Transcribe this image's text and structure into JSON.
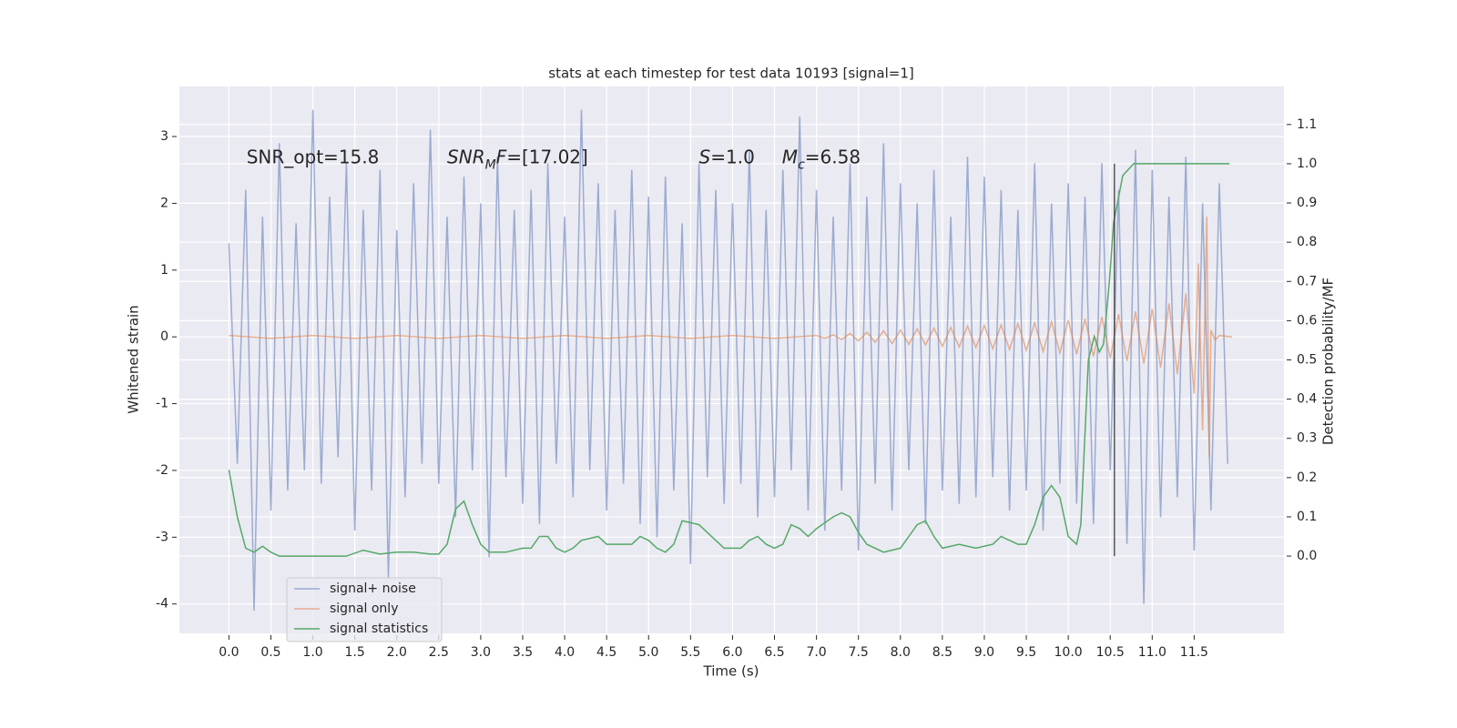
{
  "chart_data": {
    "type": "line",
    "title": "stats at each timestep for test data 10193 [signal=1]",
    "xlabel": "Time (s)",
    "ylabel": "Whitened strain",
    "y2label": "Detection probability/MF",
    "xlim": [
      -0.59,
      12.57
    ],
    "ylim": [
      -4.44,
      3.75
    ],
    "y2lim": [
      -0.197,
      1.197
    ],
    "xticks": [
      {
        "value": 0,
        "label": "0.0"
      },
      0.5,
      {
        "value": 1,
        "label": "1.0"
      },
      1.5,
      {
        "value": 2,
        "label": "2.0"
      },
      2.5,
      {
        "value": 3,
        "label": "3.0"
      },
      3.5,
      {
        "value": 4,
        "label": "4.0"
      },
      4.5,
      {
        "value": 5,
        "label": "5.0"
      },
      5.5,
      {
        "value": 6,
        "label": "6.0"
      },
      6.5,
      {
        "value": 7,
        "label": "7.0"
      },
      7.5,
      {
        "value": 8,
        "label": "8.0"
      },
      8.5,
      {
        "value": 9,
        "label": "9.0"
      },
      9.5,
      {
        "value": 10,
        "label": "10.0"
      },
      10.5,
      {
        "value": 11,
        "label": "11.0"
      },
      11.5
    ],
    "yticks": [
      -4,
      -3,
      -2,
      -1,
      0,
      1,
      2,
      3
    ],
    "y2ticks": [
      {
        "value": 0,
        "label": "0.0"
      },
      0.1,
      0.2,
      0.3,
      0.4,
      0.5,
      0.6,
      0.7,
      0.8,
      0.9,
      {
        "value": 1,
        "label": "1.0"
      },
      1.1
    ],
    "grid": true,
    "legend": "lower left",
    "vline": {
      "x": 10.55,
      "ymin": 0,
      "ymax": 1,
      "axis": "y2",
      "color": "#333333"
    },
    "annotations": [
      {
        "x": 0.21,
        "y": 2.68,
        "parts": [
          {
            "text": "SNR_opt=15.8"
          }
        ]
      },
      {
        "x": 2.6,
        "y": 2.68,
        "parts": [
          {
            "text": "SNR",
            "italic": true
          },
          {
            "text": "M",
            "italic": true,
            "sub": true
          },
          {
            "text": "F",
            "italic": true
          },
          {
            "text": "=[17.02]"
          }
        ]
      },
      {
        "x": 5.6,
        "y": 2.68,
        "parts": [
          {
            "text": "S",
            "italic": true
          },
          {
            "text": "=1.0"
          }
        ]
      },
      {
        "x": 6.59,
        "y": 2.68,
        "parts": [
          {
            "text": "M",
            "italic": true
          },
          {
            "text": "c",
            "italic": true,
            "sub": true
          },
          {
            "text": "=6.58"
          }
        ]
      }
    ],
    "series": [
      {
        "name": "signal+ noise",
        "color": "#8da0cb",
        "opacity": 0.85,
        "x": [
          0,
          0.1,
          0.2,
          0.3,
          0.4,
          0.5,
          0.6,
          0.7,
          0.8,
          0.9,
          1,
          1.1,
          1.2,
          1.3,
          1.4,
          1.5,
          1.6,
          1.7,
          1.8,
          1.9,
          2,
          2.1,
          2.2,
          2.3,
          2.4,
          2.5,
          2.6,
          2.7,
          2.8,
          2.9,
          3,
          3.1,
          3.2,
          3.3,
          3.4,
          3.5,
          3.6,
          3.7,
          3.8,
          3.9,
          4,
          4.1,
          4.2,
          4.3,
          4.4,
          4.5,
          4.6,
          4.7,
          4.8,
          4.9,
          5,
          5.1,
          5.2,
          5.3,
          5.4,
          5.5,
          5.6,
          5.7,
          5.8,
          5.9,
          6,
          6.1,
          6.2,
          6.3,
          6.4,
          6.5,
          6.6,
          6.7,
          6.8,
          6.9,
          7,
          7.1,
          7.2,
          7.3,
          7.4,
          7.5,
          7.6,
          7.7,
          7.8,
          7.9,
          8,
          8.1,
          8.2,
          8.3,
          8.4,
          8.5,
          8.6,
          8.7,
          8.8,
          8.9,
          9,
          9.1,
          9.2,
          9.3,
          9.4,
          9.5,
          9.6,
          9.7,
          9.8,
          9.9,
          10,
          10.1,
          10.2,
          10.3,
          10.4,
          10.5,
          10.6,
          10.7,
          10.8,
          10.9,
          11,
          11.1,
          11.2,
          11.3,
          11.4,
          11.5,
          11.6,
          11.7,
          11.8,
          11.9
        ],
        "values": [
          1.4,
          -1.9,
          2.2,
          -4.1,
          1.8,
          -2.6,
          2.9,
          -2.3,
          1.7,
          -2.0,
          3.4,
          -2.2,
          2.1,
          -1.8,
          2.6,
          -2.9,
          1.9,
          -2.3,
          2.5,
          -3.6,
          1.6,
          -2.4,
          2.3,
          -1.9,
          3.1,
          -2.2,
          1.8,
          -2.7,
          2.4,
          -2.0,
          2.0,
          -3.3,
          2.7,
          -2.1,
          1.9,
          -2.5,
          2.2,
          -2.8,
          2.6,
          -1.9,
          1.8,
          -2.4,
          3.4,
          -2.0,
          2.3,
          -2.6,
          1.9,
          -2.2,
          2.5,
          -2.8,
          2.1,
          -3.0,
          2.4,
          -2.3,
          1.7,
          -3.4,
          2.6,
          -2.1,
          2.2,
          -2.5,
          2.0,
          -2.2,
          2.8,
          -2.7,
          1.9,
          -2.4,
          2.5,
          -2.0,
          3.3,
          -2.6,
          2.2,
          -2.9,
          1.8,
          -2.3,
          2.6,
          -3.2,
          2.1,
          -2.2,
          2.9,
          -2.6,
          2.3,
          -2.0,
          2.0,
          -2.8,
          2.5,
          -2.3,
          1.8,
          -2.5,
          2.7,
          -2.4,
          2.4,
          -2.1,
          2.2,
          -2.6,
          1.9,
          -2.3,
          2.6,
          -2.9,
          2.0,
          -2.2,
          2.3,
          -2.5,
          2.1,
          -2.8,
          2.6,
          -2.0,
          2.2,
          -3.1,
          2.8,
          -4.0,
          2.5,
          -2.7,
          2.1,
          -2.4,
          2.7,
          -3.2,
          2.0,
          -2.6,
          2.3,
          -1.9
        ]
      },
      {
        "name": "signal only",
        "color": "#dd8452",
        "opacity": 0.6,
        "x": [
          0,
          0.5,
          1,
          1.5,
          2,
          2.5,
          3,
          3.5,
          4,
          4.5,
          5,
          5.5,
          6,
          6.5,
          7,
          7.1,
          7.2,
          7.3,
          7.4,
          7.5,
          7.6,
          7.7,
          7.8,
          7.9,
          8,
          8.1,
          8.2,
          8.3,
          8.4,
          8.5,
          8.6,
          8.7,
          8.8,
          8.9,
          9,
          9.1,
          9.2,
          9.3,
          9.4,
          9.5,
          9.6,
          9.7,
          9.8,
          9.9,
          10,
          10.1,
          10.2,
          10.3,
          10.4,
          10.5,
          10.6,
          10.7,
          10.8,
          10.9,
          11,
          11.1,
          11.2,
          11.3,
          11.4,
          11.5,
          11.55,
          11.6,
          11.65,
          11.68,
          11.7,
          11.75,
          11.8,
          11.95
        ],
        "values": [
          0.02,
          -0.02,
          0.02,
          -0.02,
          0.02,
          -0.02,
          0.02,
          -0.02,
          0.02,
          -0.02,
          0.02,
          -0.02,
          0.02,
          -0.02,
          0.02,
          -0.02,
          0.03,
          -0.04,
          0.05,
          -0.06,
          0.07,
          -0.08,
          0.09,
          -0.1,
          0.1,
          -0.11,
          0.12,
          -0.12,
          0.13,
          -0.14,
          0.14,
          -0.15,
          0.16,
          -0.16,
          0.17,
          -0.18,
          0.18,
          -0.19,
          0.2,
          -0.2,
          0.21,
          -0.22,
          0.23,
          -0.24,
          0.25,
          -0.26,
          0.27,
          -0.29,
          0.3,
          -0.32,
          0.34,
          -0.36,
          0.38,
          -0.4,
          0.42,
          -0.46,
          0.5,
          -0.56,
          0.65,
          -0.85,
          1.1,
          -1.4,
          1.8,
          -1.8,
          0.1,
          -0.05,
          0.02,
          0
        ]
      },
      {
        "name": "signal statistics",
        "color": "#55a868",
        "opacity": 1,
        "axis": "y2",
        "x": [
          0,
          0.1,
          0.2,
          0.3,
          0.4,
          0.5,
          0.6,
          0.8,
          1.0,
          1.2,
          1.4,
          1.6,
          1.8,
          2.0,
          2.2,
          2.4,
          2.5,
          2.6,
          2.7,
          2.8,
          2.9,
          3.0,
          3.1,
          3.3,
          3.5,
          3.6,
          3.7,
          3.8,
          3.9,
          4.0,
          4.1,
          4.2,
          4.4,
          4.5,
          4.6,
          4.8,
          4.9,
          5.0,
          5.1,
          5.2,
          5.3,
          5.4,
          5.5,
          5.6,
          5.8,
          5.9,
          6.1,
          6.2,
          6.3,
          6.4,
          6.5,
          6.6,
          6.7,
          6.8,
          6.9,
          7.0,
          7.2,
          7.3,
          7.4,
          7.5,
          7.6,
          7.8,
          8.0,
          8.1,
          8.2,
          8.3,
          8.4,
          8.5,
          8.7,
          8.9,
          9.1,
          9.2,
          9.3,
          9.4,
          9.5,
          9.6,
          9.7,
          9.8,
          9.9,
          10.0,
          10.1,
          10.15,
          10.24,
          10.31,
          10.37,
          10.42,
          10.49,
          10.54,
          10.65,
          10.78,
          11.0,
          11.5,
          11.92
        ],
        "values": [
          0.22,
          0.1,
          0.02,
          0.01,
          0.025,
          0.01,
          0.0,
          0.0,
          0.0,
          0.0,
          0.0,
          0.015,
          0.005,
          0.01,
          0.01,
          0.005,
          0.005,
          0.03,
          0.12,
          0.14,
          0.08,
          0.03,
          0.01,
          0.01,
          0.02,
          0.02,
          0.05,
          0.05,
          0.02,
          0.01,
          0.02,
          0.04,
          0.05,
          0.03,
          0.03,
          0.03,
          0.05,
          0.04,
          0.02,
          0.01,
          0.03,
          0.09,
          0.085,
          0.08,
          0.04,
          0.02,
          0.02,
          0.04,
          0.05,
          0.03,
          0.02,
          0.03,
          0.08,
          0.07,
          0.05,
          0.07,
          0.1,
          0.11,
          0.1,
          0.06,
          0.03,
          0.01,
          0.02,
          0.05,
          0.08,
          0.09,
          0.05,
          0.02,
          0.03,
          0.02,
          0.03,
          0.05,
          0.04,
          0.03,
          0.03,
          0.08,
          0.15,
          0.18,
          0.15,
          0.05,
          0.03,
          0.08,
          0.5,
          0.56,
          0.52,
          0.54,
          0.7,
          0.85,
          0.97,
          1.0,
          1.0,
          1.0,
          1.0
        ]
      }
    ]
  }
}
